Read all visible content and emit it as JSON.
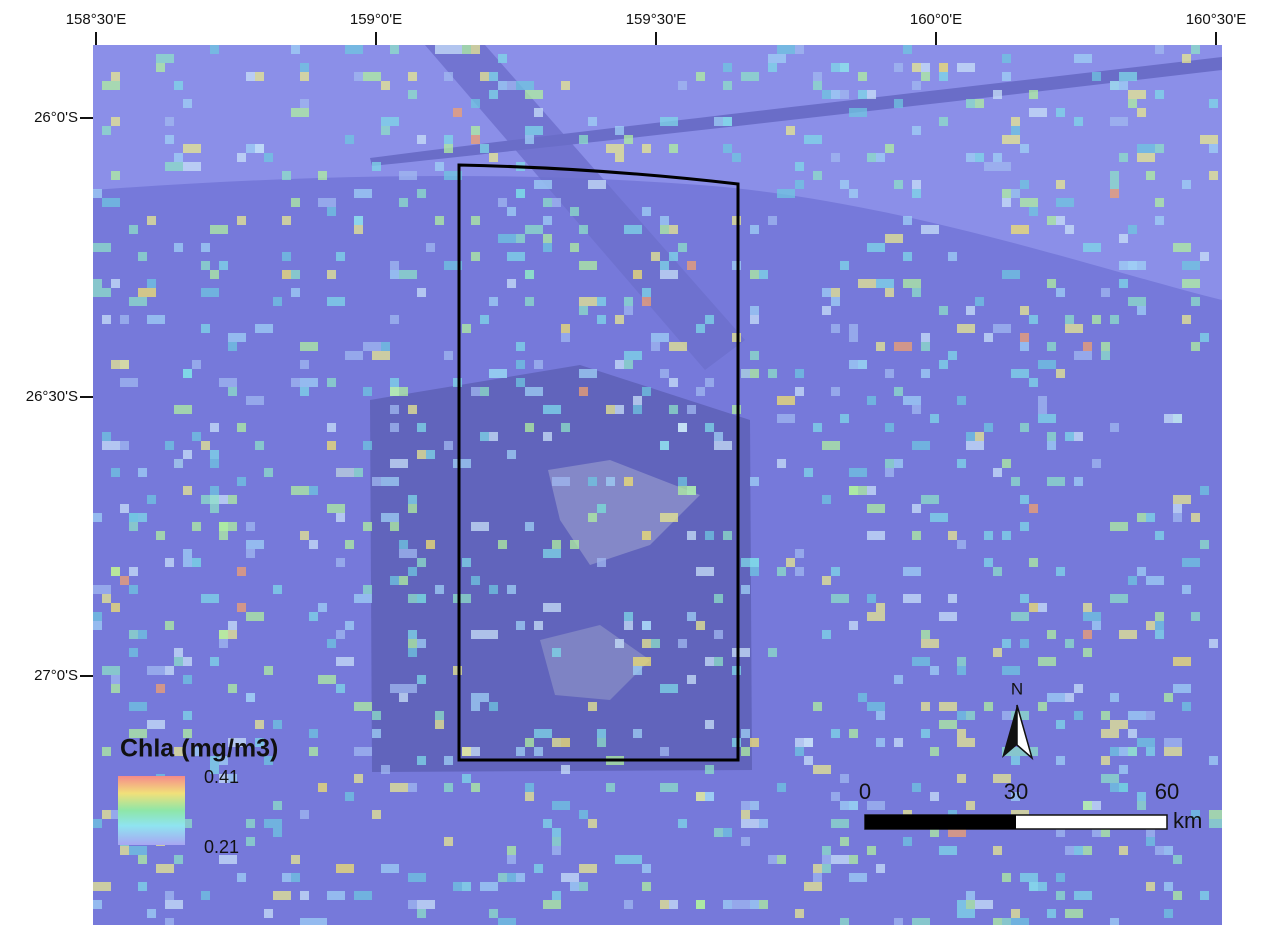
{
  "longitude_labels": [
    "158°30'E",
    "159°0'E",
    "159°30'E",
    "160°0'E",
    "160°30'E"
  ],
  "latitude_labels": [
    "26°0'S",
    "26°30'S",
    "27°0'S"
  ],
  "legend": {
    "title": "Chla (mg/m3)",
    "max_label": 0.41,
    "min_label": 0.21
  },
  "scale_bar": {
    "ticks": [
      0,
      30,
      60
    ],
    "unit": "km"
  },
  "north_arrow": "N"
}
